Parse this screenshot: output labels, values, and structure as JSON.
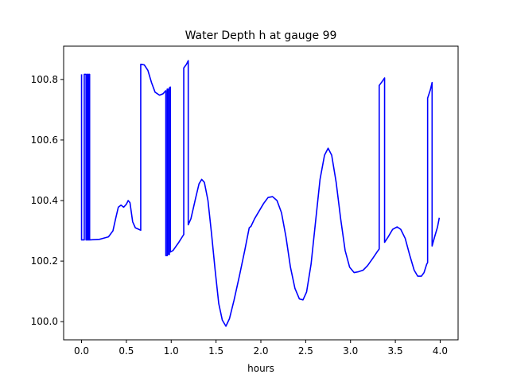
{
  "chart_data": {
    "type": "line",
    "title": "Water Depth h at gauge 99",
    "xlabel": "hours",
    "ylabel": "",
    "xlim": [
      -0.2,
      4.2
    ],
    "ylim": [
      99.94,
      100.91
    ],
    "x_ticks": [
      0.0,
      0.5,
      1.0,
      1.5,
      2.0,
      2.5,
      3.0,
      3.5,
      4.0
    ],
    "x_tick_labels": [
      "0.0",
      "0.5",
      "1.0",
      "1.5",
      "2.0",
      "2.5",
      "3.0",
      "3.5",
      "4.0"
    ],
    "y_ticks": [
      100.0,
      100.2,
      100.4,
      100.6,
      100.8
    ],
    "y_tick_labels": [
      "100.0",
      "100.2",
      "100.4",
      "100.6",
      "100.8"
    ],
    "grid": false,
    "legend": "none",
    "series": [
      {
        "color": "#0000ff",
        "points": [
          [
            0.0,
            100.817
          ],
          [
            0.0,
            100.27
          ],
          [
            0.03,
            100.27
          ],
          [
            0.03,
            100.817
          ],
          [
            0.05,
            100.817
          ],
          [
            0.05,
            100.27
          ],
          [
            0.06,
            100.27
          ],
          [
            0.06,
            100.817
          ],
          [
            0.07,
            100.817
          ],
          [
            0.07,
            100.27
          ],
          [
            0.08,
            100.27
          ],
          [
            0.08,
            100.817
          ],
          [
            0.09,
            100.817
          ],
          [
            0.09,
            100.27
          ],
          [
            0.2,
            100.272
          ],
          [
            0.3,
            100.28
          ],
          [
            0.35,
            100.3
          ],
          [
            0.38,
            100.34
          ],
          [
            0.41,
            100.378
          ],
          [
            0.44,
            100.385
          ],
          [
            0.47,
            100.378
          ],
          [
            0.5,
            100.388
          ],
          [
            0.52,
            100.4
          ],
          [
            0.54,
            100.393
          ],
          [
            0.57,
            100.33
          ],
          [
            0.6,
            100.31
          ],
          [
            0.66,
            100.302
          ],
          [
            0.66,
            100.85
          ],
          [
            0.7,
            100.848
          ],
          [
            0.74,
            100.83
          ],
          [
            0.78,
            100.79
          ],
          [
            0.82,
            100.758
          ],
          [
            0.87,
            100.748
          ],
          [
            0.91,
            100.753
          ],
          [
            0.93,
            100.76
          ],
          [
            0.94,
            100.763
          ],
          [
            0.94,
            100.218
          ],
          [
            0.955,
            100.218
          ],
          [
            0.955,
            100.768
          ],
          [
            0.965,
            100.768
          ],
          [
            0.965,
            100.222
          ],
          [
            0.98,
            100.222
          ],
          [
            0.98,
            100.772
          ],
          [
            0.99,
            100.775
          ],
          [
            0.99,
            100.23
          ],
          [
            1.02,
            100.235
          ],
          [
            1.08,
            100.26
          ],
          [
            1.14,
            100.288
          ],
          [
            1.14,
            100.838
          ],
          [
            1.17,
            100.85
          ],
          [
            1.19,
            100.862
          ],
          [
            1.19,
            100.32
          ],
          [
            1.22,
            100.34
          ],
          [
            1.27,
            100.405
          ],
          [
            1.31,
            100.455
          ],
          [
            1.34,
            100.47
          ],
          [
            1.37,
            100.46
          ],
          [
            1.41,
            100.4
          ],
          [
            1.45,
            100.29
          ],
          [
            1.49,
            100.17
          ],
          [
            1.53,
            100.06
          ],
          [
            1.57,
            100.005
          ],
          [
            1.61,
            99.985
          ],
          [
            1.65,
            100.01
          ],
          [
            1.7,
            100.07
          ],
          [
            1.76,
            100.15
          ],
          [
            1.82,
            100.235
          ],
          [
            1.86,
            100.295
          ],
          [
            1.87,
            100.31
          ],
          [
            1.89,
            100.315
          ],
          [
            1.93,
            100.34
          ],
          [
            1.98,
            100.365
          ],
          [
            2.03,
            100.39
          ],
          [
            2.08,
            100.41
          ],
          [
            2.13,
            100.413
          ],
          [
            2.18,
            100.4
          ],
          [
            2.23,
            100.36
          ],
          [
            2.28,
            100.28
          ],
          [
            2.33,
            100.18
          ],
          [
            2.38,
            100.11
          ],
          [
            2.43,
            100.075
          ],
          [
            2.47,
            100.072
          ],
          [
            2.51,
            100.098
          ],
          [
            2.56,
            100.19
          ],
          [
            2.61,
            100.33
          ],
          [
            2.66,
            100.47
          ],
          [
            2.71,
            100.55
          ],
          [
            2.75,
            100.573
          ],
          [
            2.79,
            100.55
          ],
          [
            2.84,
            100.46
          ],
          [
            2.89,
            100.34
          ],
          [
            2.94,
            100.235
          ],
          [
            2.99,
            100.18
          ],
          [
            3.04,
            100.162
          ],
          [
            3.09,
            100.165
          ],
          [
            3.14,
            100.17
          ],
          [
            3.19,
            100.185
          ],
          [
            3.25,
            100.21
          ],
          [
            3.3,
            100.232
          ],
          [
            3.32,
            100.24
          ],
          [
            3.32,
            100.78
          ],
          [
            3.35,
            100.792
          ],
          [
            3.38,
            100.805
          ],
          [
            3.38,
            100.262
          ],
          [
            3.42,
            100.28
          ],
          [
            3.47,
            100.305
          ],
          [
            3.52,
            100.313
          ],
          [
            3.56,
            100.305
          ],
          [
            3.61,
            100.275
          ],
          [
            3.66,
            100.22
          ],
          [
            3.71,
            100.17
          ],
          [
            3.75,
            100.15
          ],
          [
            3.79,
            100.15
          ],
          [
            3.82,
            100.162
          ],
          [
            3.85,
            100.19
          ],
          [
            3.86,
            100.195
          ],
          [
            3.86,
            100.738
          ],
          [
            3.89,
            100.765
          ],
          [
            3.91,
            100.79
          ],
          [
            3.91,
            100.25
          ],
          [
            3.94,
            100.282
          ],
          [
            3.97,
            100.312
          ],
          [
            3.99,
            100.343
          ]
        ]
      }
    ]
  }
}
